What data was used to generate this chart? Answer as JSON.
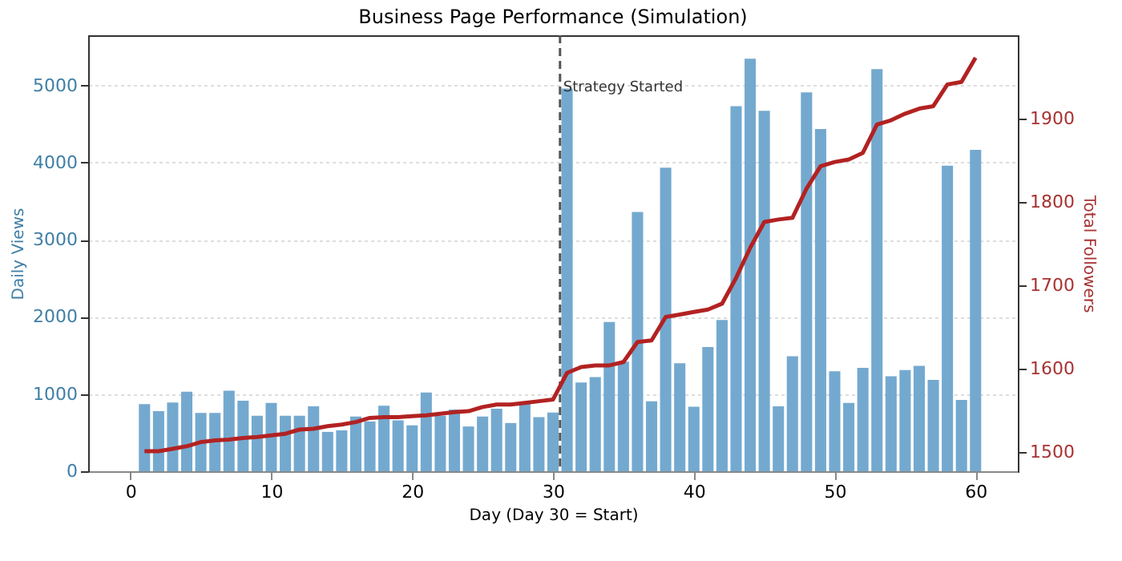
{
  "chart_data": {
    "type": "bar",
    "title": "Business Page Performance (Simulation)",
    "xlabel": "Day (Day 30 = Start)",
    "ylabel": "Daily Views",
    "y2label": "Total Followers",
    "x": [
      1,
      2,
      3,
      4,
      5,
      6,
      7,
      8,
      9,
      10,
      11,
      12,
      13,
      14,
      15,
      16,
      17,
      18,
      19,
      20,
      21,
      22,
      23,
      24,
      25,
      26,
      27,
      28,
      29,
      30,
      31,
      32,
      33,
      34,
      35,
      36,
      37,
      38,
      39,
      40,
      41,
      42,
      43,
      44,
      45,
      46,
      47,
      48,
      49,
      50,
      51,
      52,
      53,
      54,
      55,
      56,
      57,
      58,
      59,
      60
    ],
    "series": [
      {
        "color": "#74a9cf",
        "values": [
          870,
          780,
          890,
          1030,
          755,
          755,
          1045,
          915,
          720,
          885,
          720,
          720,
          840,
          510,
          530,
          710,
          645,
          850,
          660,
          595,
          1020,
          720,
          800,
          580,
          710,
          810,
          625,
          875,
          700,
          760,
          4960,
          1150,
          1220,
          1935,
          1420,
          3360,
          905,
          3935,
          1400,
          835,
          1610,
          1960,
          4730,
          5345,
          4670,
          840,
          1490,
          4910,
          4435,
          1295,
          885,
          1340,
          5210,
          1230,
          1310,
          1365,
          1185,
          3960,
          925,
          4165
        ]
      },
      {
        "type": "line",
        "axis": "y2",
        "color": "#b22222",
        "values": [
          1501,
          1501,
          1504,
          1507,
          1512,
          1514,
          1515,
          1517,
          1518,
          1520,
          1522,
          1527,
          1528,
          1531,
          1533,
          1536,
          1541,
          1542,
          1542,
          1543,
          1544,
          1546,
          1548,
          1549,
          1554,
          1557,
          1557,
          1559,
          1561,
          1563,
          1595,
          1602,
          1604,
          1604,
          1608,
          1632,
          1634,
          1662,
          1665,
          1668,
          1671,
          1678,
          1709,
          1745,
          1776,
          1779,
          1781,
          1816,
          1843,
          1848,
          1851,
          1859,
          1893,
          1898,
          1906,
          1912,
          1915,
          1941,
          1944,
          1973
        ]
      }
    ],
    "xlim": [
      -3,
      63
    ],
    "xticks": [
      0,
      10,
      20,
      30,
      40,
      50,
      60
    ],
    "ylim": [
      0,
      5650
    ],
    "yticks": [
      0,
      1000,
      2000,
      3000,
      4000,
      5000
    ],
    "y2lim": [
      1477,
      2000
    ],
    "y2ticks": [
      1500,
      1600,
      1700,
      1800,
      1900
    ],
    "grid": "y",
    "ref_lines": [
      {
        "axis": "x",
        "value": 30.5,
        "label": "Strategy Started",
        "color": "#555555",
        "line_style": "dashed"
      }
    ]
  }
}
